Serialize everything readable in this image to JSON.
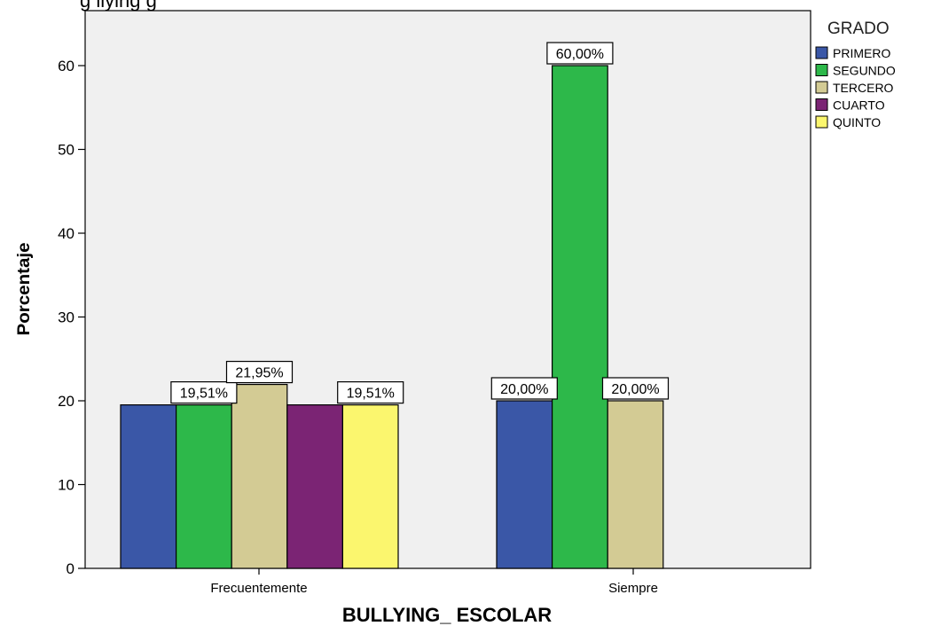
{
  "caption_fragment": "g        llying         g",
  "chart_data": {
    "type": "bar",
    "title": "",
    "xlabel": "BULLYING_ ESCOLAR",
    "ylabel": "Porcentaje",
    "ylim": [
      0,
      66
    ],
    "yticks": [
      0,
      10,
      20,
      30,
      40,
      50,
      60
    ],
    "categories": [
      "Frecuentemente",
      "Siempre"
    ],
    "legend_title": "GRADO",
    "legend_position": "right",
    "grid": false,
    "series": [
      {
        "name": "PRIMERO",
        "color": "#3a57a7",
        "values": [
          19.51,
          20.0
        ],
        "labels": [
          null,
          "20,00%"
        ]
      },
      {
        "name": "SEGUNDO",
        "color": "#2db84a",
        "values": [
          19.51,
          60.0
        ],
        "labels": [
          "19,51%",
          "60,00%"
        ]
      },
      {
        "name": "TERCERO",
        "color": "#d3cb94",
        "values": [
          21.95,
          20.0
        ],
        "labels": [
          "21,95%",
          "20,00%"
        ]
      },
      {
        "name": "CUARTO",
        "color": "#7b2474",
        "values": [
          19.51,
          null
        ],
        "labels": [
          null,
          null
        ]
      },
      {
        "name": "QUINTO",
        "color": "#fbf66e",
        "values": [
          19.51,
          null
        ],
        "labels": [
          "19,51%",
          null
        ]
      }
    ]
  }
}
